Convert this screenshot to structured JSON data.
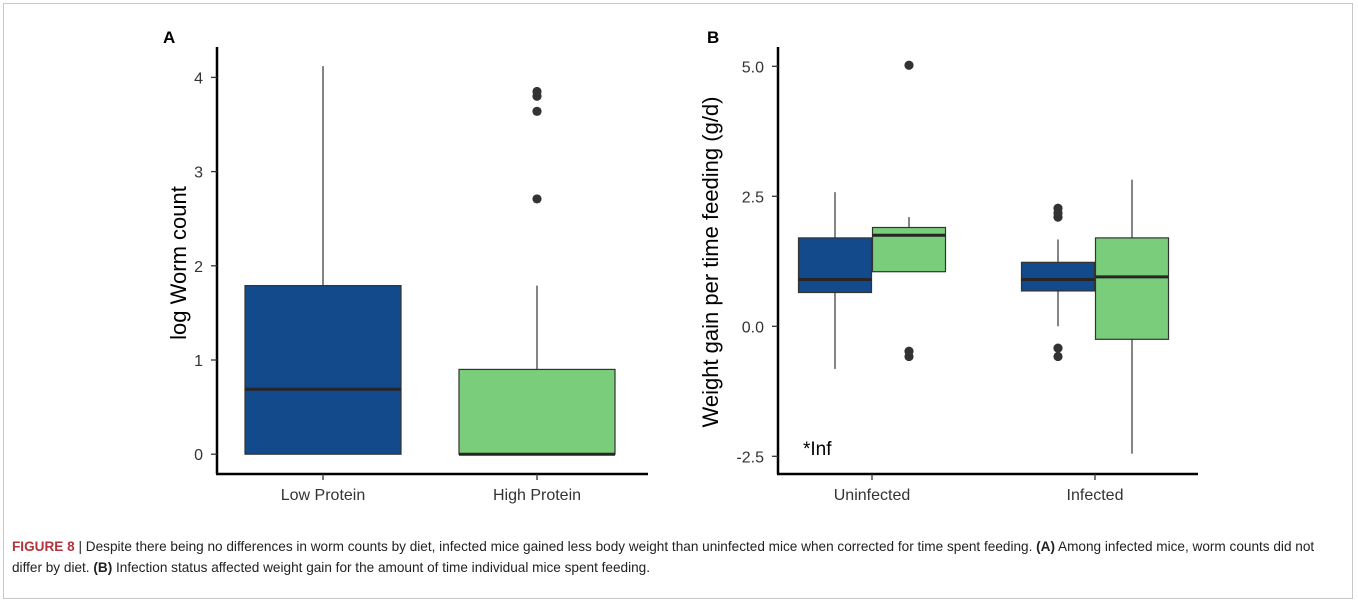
{
  "chart_data": [
    {
      "type": "box",
      "panel_label": "A",
      "ylabel": "log Worm count",
      "xlabel": "",
      "categories": [
        "Low Protein",
        "High Protein"
      ],
      "ylim": [
        -0.25,
        4.4
      ],
      "yticks": [
        0,
        1,
        2,
        3,
        4
      ],
      "grid": false,
      "boxes": [
        {
          "category": "Low Protein",
          "fill": "#124a8c",
          "min": 0,
          "q1": 0,
          "median": 0.69,
          "q3": 1.79,
          "max": 4.12,
          "outliers": []
        },
        {
          "category": "High Protein",
          "fill": "#7acd7a",
          "min": 0,
          "q1": 0,
          "median": 0.0,
          "q3": 0.9,
          "max": 1.79,
          "outliers": [
            2.71,
            3.64,
            3.8,
            3.85
          ]
        }
      ]
    },
    {
      "type": "box",
      "panel_label": "B",
      "ylabel": "Weight gain per time feeding (g/d)",
      "xlabel": "",
      "categories": [
        "Uninfected",
        "Infected"
      ],
      "ylim": [
        -2.85,
        5.4
      ],
      "yticks": [
        -2.5,
        0.0,
        2.5,
        5.0
      ],
      "ytick_labels": [
        "-2.5",
        "0.0",
        "2.5",
        "5.0"
      ],
      "grid": false,
      "annotation": "*Inf",
      "boxes": [
        {
          "category": "Uninfected",
          "fill": "#124a8c",
          "min": -0.82,
          "q1": 0.65,
          "median": 0.9,
          "q3": 1.7,
          "max": 2.58,
          "outliers": []
        },
        {
          "category": "Uninfected",
          "fill": "#7acd7a",
          "min": 1.05,
          "q1": 1.05,
          "median": 1.75,
          "q3": 1.9,
          "max": 2.1,
          "outliers": [
            5.02,
            -0.48,
            -0.58
          ]
        },
        {
          "category": "Infected",
          "fill": "#124a8c",
          "min": 0.0,
          "q1": 0.68,
          "median": 0.9,
          "q3": 1.23,
          "max": 1.67,
          "outliers": [
            2.27,
            2.18,
            2.1,
            -0.42,
            -0.58
          ]
        },
        {
          "category": "Infected",
          "fill": "#7acd7a",
          "min": -2.45,
          "q1": -0.25,
          "median": 0.95,
          "q3": 1.7,
          "max": 2.82,
          "outliers": []
        }
      ]
    }
  ],
  "caption": {
    "figure_label": "FIGURE 8",
    "separator": " | ",
    "text": "Despite there being no differences in worm counts by diet, infected mice gained less body weight than uninfected mice when corrected for time spent feeding. ",
    "a_label": "(A)",
    "a_text": " Among infected mice, worm counts did not differ by diet. ",
    "b_label": "(B)",
    "b_text": " Infection status affected weight gain for the amount of time individual mice spent feeding."
  },
  "colors": {
    "dark_blue": "#124a8c",
    "light_green": "#7acd7a",
    "figure_label": "#b0343c"
  }
}
